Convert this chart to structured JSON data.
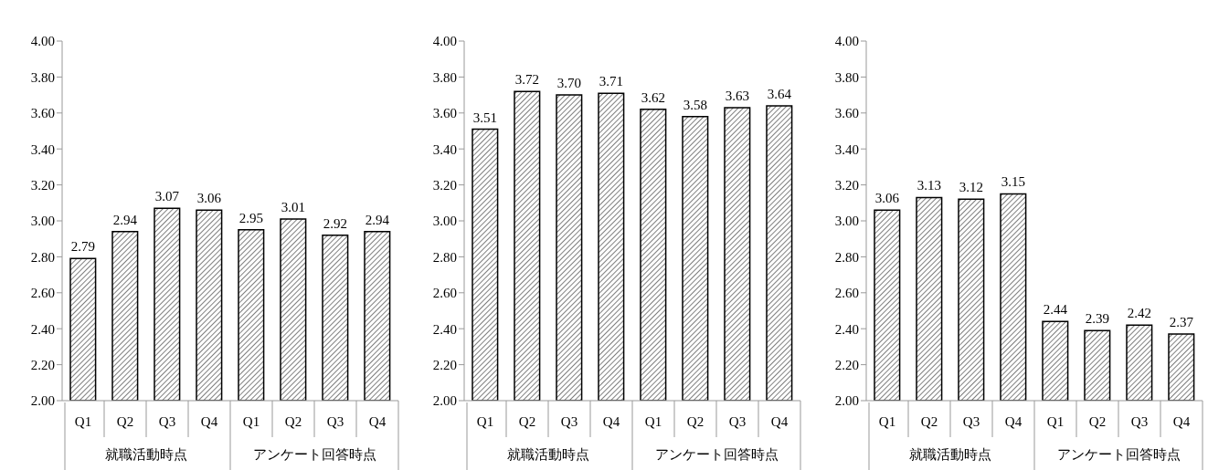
{
  "chart_data": [
    {
      "type": "bar",
      "categories": [
        "Q1",
        "Q2",
        "Q3",
        "Q4",
        "Q1",
        "Q2",
        "Q3",
        "Q4"
      ],
      "values": [
        2.79,
        2.94,
        3.07,
        3.06,
        2.95,
        3.01,
        2.92,
        2.94
      ],
      "value_labels": [
        "2.79",
        "2.94",
        "3.07",
        "3.06",
        "2.95",
        "3.01",
        "2.92",
        "2.94"
      ],
      "color": "#000000",
      "ylim": [
        2,
        4
      ],
      "yticks": [
        {
          "value": 2,
          "label": "2.00"
        },
        {
          "value": 2.2,
          "label": "2.20"
        },
        {
          "value": 2.4,
          "label": "2.40"
        },
        {
          "value": 2.6,
          "label": "2.60"
        },
        {
          "value": 2.8,
          "label": "2.80"
        },
        {
          "value": 3,
          "label": "3.00"
        },
        {
          "value": 3.2,
          "label": "3.20"
        },
        {
          "value": 3.4,
          "label": "3.40"
        },
        {
          "value": 3.6,
          "label": "3.60"
        },
        {
          "value": 3.8,
          "label": "3.80"
        },
        {
          "value": 4,
          "label": "4.00"
        }
      ],
      "grid": false,
      "annotations": [
        "就職活動時点",
        "アンケート回答時点"
      ]
    },
    {
      "type": "bar",
      "categories": [
        "Q1",
        "Q2",
        "Q3",
        "Q4",
        "Q1",
        "Q2",
        "Q3",
        "Q4"
      ],
      "values": [
        3.51,
        3.72,
        3.7,
        3.71,
        3.62,
        3.58,
        3.63,
        3.64
      ],
      "value_labels": [
        "3.51",
        "3.72",
        "3.70",
        "3.71",
        "3.62",
        "3.58",
        "3.63",
        "3.64"
      ],
      "color": "#000000",
      "ylim": [
        2,
        4
      ],
      "yticks": [
        {
          "value": 2,
          "label": "2.00"
        },
        {
          "value": 2.2,
          "label": "2.20"
        },
        {
          "value": 2.4,
          "label": "2.40"
        },
        {
          "value": 2.6,
          "label": "2.60"
        },
        {
          "value": 2.8,
          "label": "2.80"
        },
        {
          "value": 3,
          "label": "3.00"
        },
        {
          "value": 3.2,
          "label": "3.20"
        },
        {
          "value": 3.4,
          "label": "3.40"
        },
        {
          "value": 3.6,
          "label": "3.60"
        },
        {
          "value": 3.8,
          "label": "3.80"
        },
        {
          "value": 4,
          "label": "4.00"
        }
      ],
      "grid": false,
      "annotations": [
        "就職活動時点",
        "アンケート回答時点"
      ]
    },
    {
      "type": "bar",
      "categories": [
        "Q1",
        "Q2",
        "Q3",
        "Q4",
        "Q1",
        "Q2",
        "Q3",
        "Q4"
      ],
      "values": [
        3.06,
        3.13,
        3.12,
        3.15,
        2.44,
        2.39,
        2.42,
        2.37
      ],
      "value_labels": [
        "3.06",
        "3.13",
        "3.12",
        "3.15",
        "2.44",
        "2.39",
        "2.42",
        "2.37"
      ],
      "color": "#000000",
      "ylim": [
        2,
        4
      ],
      "yticks": [
        {
          "value": 2,
          "label": "2.00"
        },
        {
          "value": 2.2,
          "label": "2.20"
        },
        {
          "value": 2.4,
          "label": "2.40"
        },
        {
          "value": 2.6,
          "label": "2.60"
        },
        {
          "value": 2.8,
          "label": "2.80"
        },
        {
          "value": 3,
          "label": "3.00"
        },
        {
          "value": 3.2,
          "label": "3.20"
        },
        {
          "value": 3.4,
          "label": "3.40"
        },
        {
          "value": 3.6,
          "label": "3.60"
        },
        {
          "value": 3.8,
          "label": "3.80"
        },
        {
          "value": 4,
          "label": "4.00"
        }
      ],
      "grid": false,
      "annotations": [
        "就職活動時点",
        "アンケート回答時点"
      ]
    }
  ]
}
